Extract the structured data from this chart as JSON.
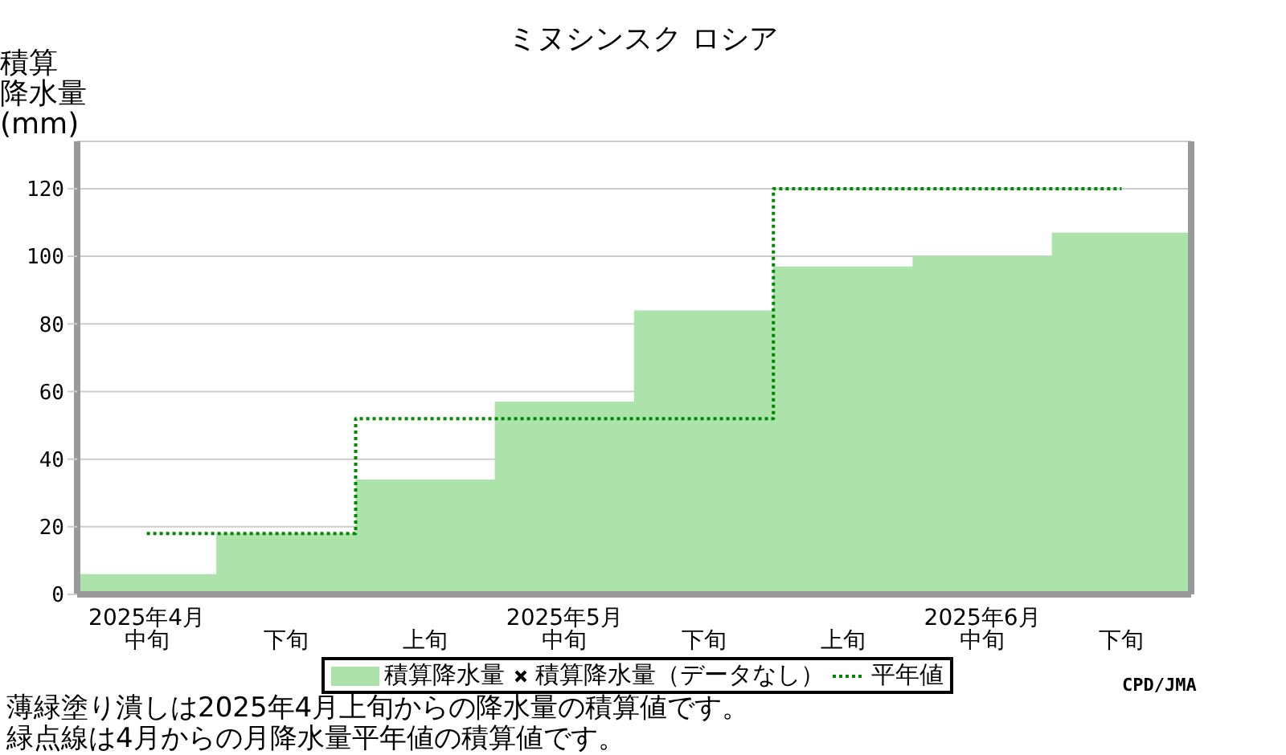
{
  "chart_data": {
    "type": "bar",
    "title": "ミヌシンスク ロシア",
    "ylabel": "積算降水量(mm)",
    "categories": [
      "2025年4月中旬",
      "下旬",
      "上旬",
      "2025年5月中旬",
      "下旬",
      "上旬",
      "2025年6月中旬",
      "下旬"
    ],
    "series": [
      {
        "name": "積算降水量",
        "color": "#abe3aa",
        "values": [
          6,
          18,
          34,
          57,
          84,
          97,
          100,
          107
        ]
      },
      {
        "name": "積算降水量（データなし）",
        "type": "scatter",
        "marker": "cross",
        "color": "#000000",
        "values": [
          null,
          null,
          null,
          null,
          null,
          null,
          null,
          null
        ]
      },
      {
        "name": "平年値",
        "type": "step",
        "color": "#008800",
        "line_style": "dotted",
        "values": [
          18,
          18,
          52,
          52,
          52,
          120,
          120,
          120
        ]
      }
    ],
    "ylim": [
      0,
      134
    ],
    "yticks": [
      0,
      20,
      40,
      60,
      80,
      100,
      120
    ],
    "grid": "y",
    "legend": "bottom",
    "annotations": [
      "CPD/JMA",
      "薄緑塗り潰しは2025年4月上旬からの降水量の積算値です。",
      "緑点線は4月からの月降水量平年値の積算値です。"
    ]
  }
}
